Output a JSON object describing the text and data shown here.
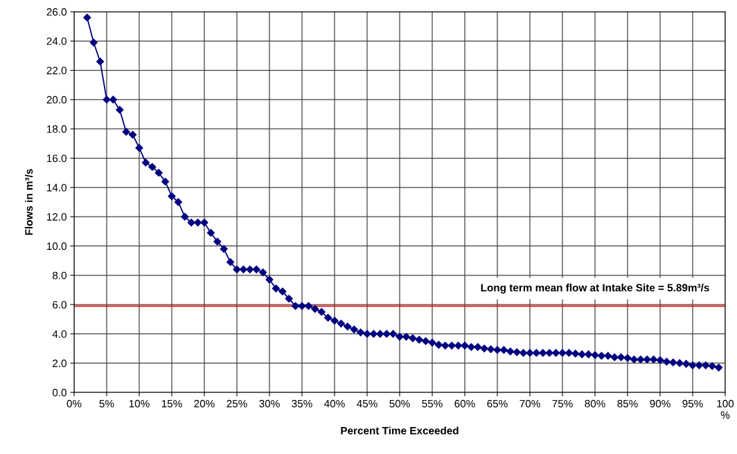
{
  "chart_data": {
    "type": "line",
    "xlabel": "Percent Time Exceeded",
    "ylabel": "Flows in m³/s",
    "x": [
      2,
      3,
      4,
      5,
      6,
      7,
      8,
      9,
      10,
      11,
      12,
      13,
      14,
      15,
      16,
      17,
      18,
      19,
      20,
      21,
      22,
      23,
      24,
      25,
      26,
      27,
      28,
      29,
      30,
      31,
      32,
      33,
      34,
      35,
      36,
      37,
      38,
      39,
      40,
      41,
      42,
      43,
      44,
      45,
      46,
      47,
      48,
      49,
      50,
      51,
      52,
      53,
      54,
      55,
      56,
      57,
      58,
      59,
      60,
      61,
      62,
      63,
      64,
      65,
      66,
      67,
      68,
      69,
      70,
      71,
      72,
      73,
      74,
      75,
      76,
      77,
      78,
      79,
      80,
      81,
      82,
      83,
      84,
      85,
      86,
      87,
      88,
      89,
      90,
      91,
      92,
      93,
      94,
      95,
      96,
      97,
      98,
      99
    ],
    "series": [
      {
        "color": "#000080",
        "values": [
          25.6,
          23.9,
          22.6,
          20.0,
          20.0,
          19.3,
          17.8,
          17.6,
          16.7,
          15.7,
          15.4,
          15.0,
          14.4,
          13.4,
          13.0,
          12.0,
          11.6,
          11.6,
          11.6,
          10.9,
          10.3,
          9.8,
          8.9,
          8.4,
          8.4,
          8.4,
          8.4,
          8.2,
          7.7,
          7.1,
          6.9,
          6.4,
          5.9,
          5.9,
          5.9,
          5.7,
          5.5,
          5.1,
          4.9,
          4.7,
          4.5,
          4.3,
          4.1,
          4.0,
          4.0,
          4.0,
          4.0,
          4.0,
          3.8,
          3.8,
          3.7,
          3.6,
          3.5,
          3.4,
          3.25,
          3.2,
          3.2,
          3.2,
          3.2,
          3.1,
          3.1,
          3.0,
          2.95,
          2.9,
          2.9,
          2.8,
          2.75,
          2.7,
          2.7,
          2.7,
          2.7,
          2.7,
          2.7,
          2.7,
          2.7,
          2.65,
          2.6,
          2.6,
          2.55,
          2.5,
          2.5,
          2.4,
          2.4,
          2.35,
          2.25,
          2.25,
          2.25,
          2.25,
          2.2,
          2.1,
          2.05,
          2.0,
          1.95,
          1.85,
          1.85,
          1.85,
          1.8,
          1.7
        ]
      }
    ],
    "xlim": [
      0,
      100
    ],
    "xticks": [
      {
        "value": 0,
        "label": "0%"
      },
      {
        "value": 5,
        "label": "5%"
      },
      {
        "value": 10,
        "label": "10%"
      },
      {
        "value": 15,
        "label": "15%"
      },
      {
        "value": 20,
        "label": "20%"
      },
      {
        "value": 25,
        "label": "25%"
      },
      {
        "value": 30,
        "label": "30%"
      },
      {
        "value": 35,
        "label": "35%"
      },
      {
        "value": 40,
        "label": "40%"
      },
      {
        "value": 45,
        "label": "45%"
      },
      {
        "value": 50,
        "label": "50%"
      },
      {
        "value": 55,
        "label": "55%"
      },
      {
        "value": 60,
        "label": "60%"
      },
      {
        "value": 65,
        "label": "65%"
      },
      {
        "value": 70,
        "label": "70%"
      },
      {
        "value": 75,
        "label": "75%"
      },
      {
        "value": 80,
        "label": "80%"
      },
      {
        "value": 85,
        "label": "85%"
      },
      {
        "value": 90,
        "label": "90%"
      },
      {
        "value": 95,
        "label": "95%"
      },
      {
        "value": 100,
        "label": "100\n%"
      }
    ],
    "ylim": [
      0,
      26
    ],
    "yticks": [
      {
        "value": 0,
        "label": "0.0"
      },
      {
        "value": 2,
        "label": "2.0"
      },
      {
        "value": 4,
        "label": "4.0"
      },
      {
        "value": 6,
        "label": "6.0"
      },
      {
        "value": 8,
        "label": "8.0"
      },
      {
        "value": 10,
        "label": "10.0"
      },
      {
        "value": 12,
        "label": "12.0"
      },
      {
        "value": 14,
        "label": "14.0"
      },
      {
        "value": 16,
        "label": "16.0"
      },
      {
        "value": 18,
        "label": "18.0"
      },
      {
        "value": 20,
        "label": "20.0"
      },
      {
        "value": 22,
        "label": "22.0"
      },
      {
        "value": 24,
        "label": "24.0"
      },
      {
        "value": 26,
        "label": "26.0"
      }
    ],
    "ref_lines": [
      {
        "axis": "y",
        "value": 5.89,
        "label": "Long term mean flow at Intake Site = 5.89m³/s",
        "color": "#ff0000"
      }
    ],
    "grid": true,
    "marker": "diamond",
    "line_style": "solid"
  }
}
